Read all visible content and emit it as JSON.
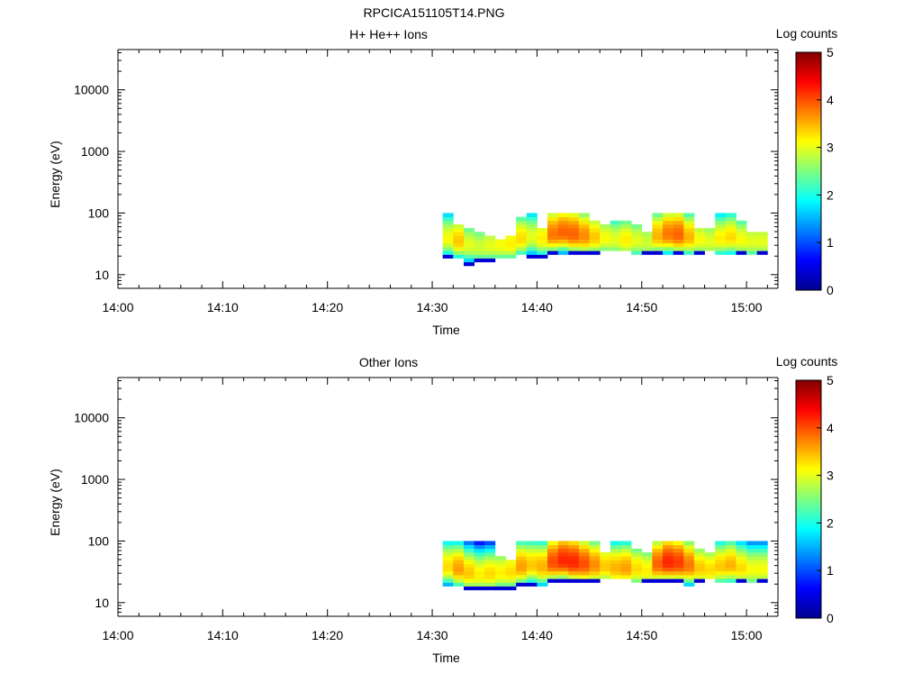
{
  "figure_title": "RPCICA151105T14.PNG",
  "colors": {
    "axis": "#000000",
    "background": "#ffffff",
    "colormap": [
      "#00008f",
      "#0000ff",
      "#0080ff",
      "#00ffff",
      "#80ff80",
      "#ffff00",
      "#ff8000",
      "#ff0000",
      "#800000"
    ]
  },
  "chart_data": [
    {
      "type": "heatmap",
      "title": "H+ He++ Ions",
      "xlabel": "Time",
      "ylabel": "Energy (eV)",
      "x_ticks": [
        "14:00",
        "14:10",
        "14:20",
        "14:30",
        "14:40",
        "14:50",
        "15:00"
      ],
      "x_range_minutes": [
        0,
        63
      ],
      "y_scale": "log",
      "y_ticks": [
        10,
        100,
        1000,
        10000
      ],
      "y_range": [
        6,
        45000
      ],
      "colorbar": {
        "label": "Log counts",
        "range": [
          0,
          5
        ],
        "ticks": [
          "0",
          "1",
          "2",
          "3",
          "4",
          "5"
        ]
      },
      "data_time_range": [
        "14:31",
        "15:02"
      ],
      "columns": [
        {
          "t": 31.0,
          "lo": 19,
          "hi": 95,
          "peak": 38,
          "max": 3.1
        },
        {
          "t": 32.0,
          "lo": 18,
          "hi": 70,
          "peak": 35,
          "max": 3.4
        },
        {
          "t": 33.0,
          "lo": 15,
          "hi": 55,
          "peak": 30,
          "max": 3.0
        },
        {
          "t": 34.0,
          "lo": 16,
          "hi": 48,
          "peak": 28,
          "max": 2.9
        },
        {
          "t": 35.0,
          "lo": 17,
          "hi": 42,
          "peak": 29,
          "max": 3.0
        },
        {
          "t": 36.0,
          "lo": 18,
          "hi": 40,
          "peak": 30,
          "max": 3.1
        },
        {
          "t": 37.0,
          "lo": 18,
          "hi": 45,
          "peak": 31,
          "max": 3.2
        },
        {
          "t": 38.0,
          "lo": 20,
          "hi": 85,
          "peak": 38,
          "max": 3.3
        },
        {
          "t": 39.0,
          "lo": 19,
          "hi": 95,
          "peak": 40,
          "max": 3.0
        },
        {
          "t": 40.0,
          "lo": 19,
          "hi": 60,
          "peak": 38,
          "max": 3.2
        },
        {
          "t": 41.0,
          "lo": 22,
          "hi": 95,
          "peak": 45,
          "max": 3.8
        },
        {
          "t": 42.0,
          "lo": 20,
          "hi": 95,
          "peak": 48,
          "max": 3.9
        },
        {
          "t": 43.0,
          "lo": 22,
          "hi": 95,
          "peak": 45,
          "max": 3.9
        },
        {
          "t": 44.0,
          "lo": 22,
          "hi": 95,
          "peak": 42,
          "max": 3.7
        },
        {
          "t": 45.0,
          "lo": 22,
          "hi": 80,
          "peak": 40,
          "max": 3.4
        },
        {
          "t": 46.0,
          "lo": 24,
          "hi": 70,
          "peak": 38,
          "max": 3.1
        },
        {
          "t": 47.0,
          "lo": 24,
          "hi": 80,
          "peak": 36,
          "max": 3.0
        },
        {
          "t": 48.0,
          "lo": 24,
          "hi": 75,
          "peak": 36,
          "max": 3.2
        },
        {
          "t": 49.0,
          "lo": 20,
          "hi": 70,
          "peak": 35,
          "max": 3.0
        },
        {
          "t": 50.0,
          "lo": 22,
          "hi": 50,
          "peak": 33,
          "max": 2.9
        },
        {
          "t": 51.0,
          "lo": 22,
          "hi": 95,
          "peak": 42,
          "max": 3.5
        },
        {
          "t": 52.0,
          "lo": 20,
          "hi": 95,
          "peak": 45,
          "max": 3.8
        },
        {
          "t": 53.0,
          "lo": 22,
          "hi": 95,
          "peak": 44,
          "max": 3.9
        },
        {
          "t": 54.0,
          "lo": 20,
          "hi": 95,
          "peak": 40,
          "max": 3.5
        },
        {
          "t": 55.0,
          "lo": 22,
          "hi": 60,
          "peak": 36,
          "max": 3.1
        },
        {
          "t": 56.0,
          "lo": 24,
          "hi": 55,
          "peak": 34,
          "max": 3.0
        },
        {
          "t": 57.0,
          "lo": 20,
          "hi": 95,
          "peak": 38,
          "max": 3.2
        },
        {
          "t": 58.0,
          "lo": 20,
          "hi": 95,
          "peak": 40,
          "max": 3.3
        },
        {
          "t": 59.0,
          "lo": 22,
          "hi": 80,
          "peak": 36,
          "max": 3.1
        },
        {
          "t": 60.0,
          "lo": 20,
          "hi": 50,
          "peak": 34,
          "max": 3.0
        },
        {
          "t": 61.0,
          "lo": 22,
          "hi": 50,
          "peak": 34,
          "max": 3.0
        }
      ]
    },
    {
      "type": "heatmap",
      "title": "Other Ions",
      "xlabel": "Time",
      "ylabel": "Energy (eV)",
      "x_ticks": [
        "14:00",
        "14:10",
        "14:20",
        "14:30",
        "14:40",
        "14:50",
        "15:00"
      ],
      "x_range_minutes": [
        0,
        63
      ],
      "y_scale": "log",
      "y_ticks": [
        10,
        100,
        1000,
        10000
      ],
      "y_range": [
        6,
        45000
      ],
      "colorbar": {
        "label": "Log counts",
        "range": [
          0,
          5
        ],
        "ticks": [
          "0",
          "1",
          "2",
          "3",
          "4",
          "5"
        ]
      },
      "data_time_range": [
        "14:31",
        "15:02"
      ],
      "columns": [
        {
          "t": 31.0,
          "lo": 18,
          "hi": 95,
          "peak": 38,
          "max": 3.3
        },
        {
          "t": 32.0,
          "lo": 18,
          "hi": 95,
          "peak": 35,
          "max": 3.6
        },
        {
          "t": 33.0,
          "lo": 16,
          "hi": 95,
          "peak": 30,
          "max": 3.4
        },
        {
          "t": 34.0,
          "lo": 16,
          "hi": 95,
          "peak": 28,
          "max": 3.2
        },
        {
          "t": 35.0,
          "lo": 16,
          "hi": 95,
          "peak": 29,
          "max": 3.3
        },
        {
          "t": 36.0,
          "lo": 16,
          "hi": 55,
          "peak": 30,
          "max": 3.2
        },
        {
          "t": 37.0,
          "lo": 17,
          "hi": 50,
          "peak": 31,
          "max": 3.3
        },
        {
          "t": 38.0,
          "lo": 19,
          "hi": 95,
          "peak": 38,
          "max": 3.6
        },
        {
          "t": 39.0,
          "lo": 19,
          "hi": 95,
          "peak": 40,
          "max": 3.4
        },
        {
          "t": 40.0,
          "lo": 18,
          "hi": 95,
          "peak": 38,
          "max": 3.5
        },
        {
          "t": 41.0,
          "lo": 22,
          "hi": 95,
          "peak": 45,
          "max": 4.0
        },
        {
          "t": 42.0,
          "lo": 22,
          "hi": 95,
          "peak": 48,
          "max": 4.2
        },
        {
          "t": 43.0,
          "lo": 22,
          "hi": 95,
          "peak": 45,
          "max": 4.2
        },
        {
          "t": 44.0,
          "lo": 22,
          "hi": 95,
          "peak": 42,
          "max": 4.0
        },
        {
          "t": 45.0,
          "lo": 22,
          "hi": 95,
          "peak": 40,
          "max": 3.7
        },
        {
          "t": 46.0,
          "lo": 24,
          "hi": 70,
          "peak": 38,
          "max": 3.4
        },
        {
          "t": 47.0,
          "lo": 24,
          "hi": 95,
          "peak": 36,
          "max": 3.5
        },
        {
          "t": 48.0,
          "lo": 24,
          "hi": 95,
          "peak": 36,
          "max": 3.6
        },
        {
          "t": 49.0,
          "lo": 20,
          "hi": 80,
          "peak": 35,
          "max": 3.3
        },
        {
          "t": 50.0,
          "lo": 22,
          "hi": 70,
          "peak": 33,
          "max": 3.2
        },
        {
          "t": 51.0,
          "lo": 22,
          "hi": 95,
          "peak": 42,
          "max": 3.9
        },
        {
          "t": 52.0,
          "lo": 22,
          "hi": 95,
          "peak": 45,
          "max": 4.2
        },
        {
          "t": 53.0,
          "lo": 22,
          "hi": 95,
          "peak": 44,
          "max": 4.1
        },
        {
          "t": 54.0,
          "lo": 18,
          "hi": 95,
          "peak": 40,
          "max": 3.8
        },
        {
          "t": 55.0,
          "lo": 22,
          "hi": 80,
          "peak": 36,
          "max": 3.4
        },
        {
          "t": 56.0,
          "lo": 24,
          "hi": 70,
          "peak": 34,
          "max": 3.3
        },
        {
          "t": 57.0,
          "lo": 20,
          "hi": 95,
          "peak": 38,
          "max": 3.4
        },
        {
          "t": 58.0,
          "lo": 20,
          "hi": 95,
          "peak": 40,
          "max": 3.5
        },
        {
          "t": 59.0,
          "lo": 22,
          "hi": 95,
          "peak": 36,
          "max": 3.3
        },
        {
          "t": 60.0,
          "lo": 20,
          "hi": 95,
          "peak": 34,
          "max": 3.1
        },
        {
          "t": 61.0,
          "lo": 22,
          "hi": 95,
          "peak": 34,
          "max": 3.1
        }
      ]
    }
  ]
}
